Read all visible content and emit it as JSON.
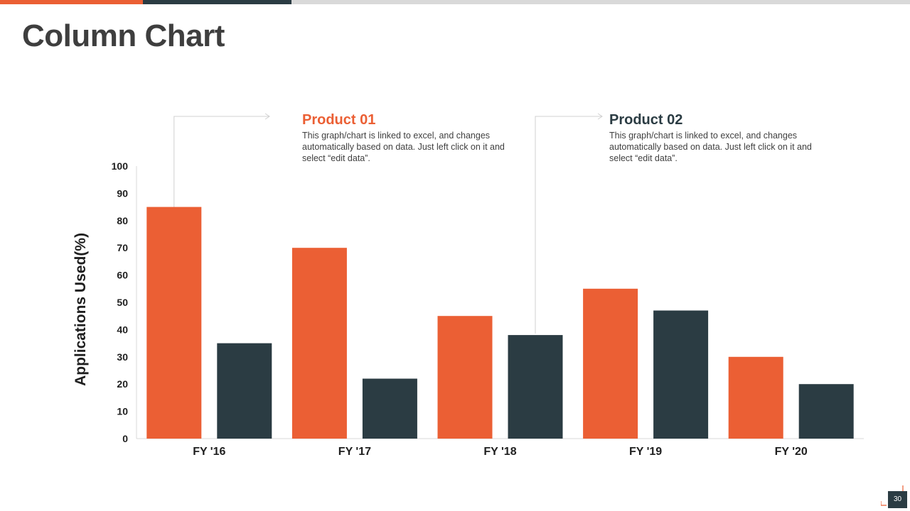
{
  "slide": {
    "title": "Column Chart",
    "page_number": "30"
  },
  "colors": {
    "accent_orange": "#EB5F34",
    "accent_dark": "#2B3C43",
    "title_text": "#3E3E3E",
    "body_text": "#404040"
  },
  "callouts": [
    {
      "title": "Product 01",
      "text": "This graph/chart is linked to excel, and changes automatically based on data. Just left click on it and select “edit data”.",
      "color": "#EB5F34"
    },
    {
      "title": "Product 02",
      "text": "This graph/chart is linked to excel, and changes automatically based on data. Just left click on it and select “edit data”.",
      "color": "#2B3C43"
    }
  ],
  "chart_data": {
    "type": "bar",
    "title": "",
    "xlabel": "",
    "ylabel": "Applications Used(%)",
    "categories": [
      "FY '16",
      "FY '17",
      "FY '18",
      "FY '19",
      "FY '20"
    ],
    "series": [
      {
        "name": "Product 01",
        "color": "#EB5F34",
        "values": [
          85,
          70,
          45,
          55,
          30
        ]
      },
      {
        "name": "Product 02",
        "color": "#2B3C43",
        "values": [
          35,
          22,
          38,
          47,
          20
        ]
      }
    ],
    "ylim": [
      0,
      100
    ],
    "yticks": [
      0,
      10,
      20,
      30,
      40,
      50,
      60,
      70,
      80,
      90,
      100
    ],
    "grid": false,
    "legend": "none"
  }
}
